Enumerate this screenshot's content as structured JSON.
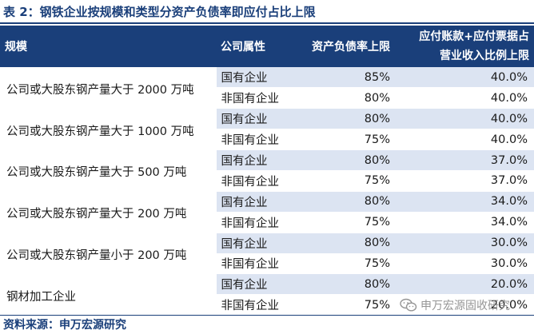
{
  "title": "表 2：钢铁企业按规模和类型分资产负债率即应付占比上限",
  "table": {
    "headers": {
      "scale": "规模",
      "attribute": "公司属性",
      "ratio": "资产负债率上限",
      "ap_line1": "应付账款+应付票据占",
      "ap_line2": "营业收入比例上限"
    },
    "groups": [
      {
        "scale": "公司或大股东钢产量大于 2000 万吨",
        "rows": [
          {
            "attribute": "国有企业",
            "ratio": "85%",
            "ap": "40.0%"
          },
          {
            "attribute": "非国有企业",
            "ratio": "80%",
            "ap": "40.0%"
          }
        ]
      },
      {
        "scale": "公司或大股东钢产量大于 1000 万吨",
        "rows": [
          {
            "attribute": "国有企业",
            "ratio": "80%",
            "ap": "40.0%"
          },
          {
            "attribute": "非国有企业",
            "ratio": "75%",
            "ap": "40.0%"
          }
        ]
      },
      {
        "scale": "公司或大股东钢产量大于 500 万吨",
        "rows": [
          {
            "attribute": "国有企业",
            "ratio": "80%",
            "ap": "37.0%"
          },
          {
            "attribute": "非国有企业",
            "ratio": "75%",
            "ap": "37.0%"
          }
        ]
      },
      {
        "scale": "公司或大股东钢产量大于 200 万吨",
        "rows": [
          {
            "attribute": "国有企业",
            "ratio": "80%",
            "ap": "34.0%"
          },
          {
            "attribute": "非国有企业",
            "ratio": "75%",
            "ap": "34.0%"
          }
        ]
      },
      {
        "scale": "公司或大股东钢产量小于 200 万吨",
        "rows": [
          {
            "attribute": "国有企业",
            "ratio": "80%",
            "ap": "30.0%"
          },
          {
            "attribute": "非国有企业",
            "ratio": "75%",
            "ap": "30.0%"
          }
        ]
      },
      {
        "scale": "钢材加工企业",
        "rows": [
          {
            "attribute": "国有企业",
            "ratio": "80%",
            "ap": "20.0%"
          },
          {
            "attribute": "非国有企业",
            "ratio": "75%",
            "ap": "20.0%"
          }
        ]
      }
    ]
  },
  "source": "资料来源：申万宏源研究",
  "watermark": {
    "text": "申万宏源固收研究",
    "icon": "wechat-icon"
  },
  "colors": {
    "header_bg": "#1a3f7a",
    "stripe": "#dce4f2",
    "title": "#1a3f7a"
  }
}
